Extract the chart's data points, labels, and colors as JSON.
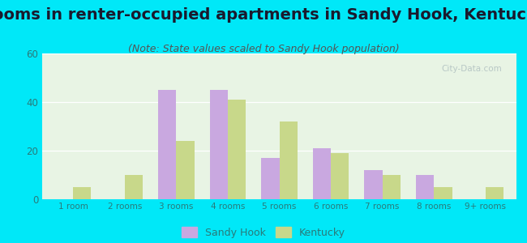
{
  "title": "Rooms in renter-occupied apartments in Sandy Hook, Kentucky",
  "subtitle": "(Note: State values scaled to Sandy Hook population)",
  "categories": [
    "1 room",
    "2 rooms",
    "3 rooms",
    "4 rooms",
    "5 rooms",
    "6 rooms",
    "7 rooms",
    "8 rooms",
    "9+ rooms"
  ],
  "sandy_hook": [
    0,
    0,
    45,
    45,
    17,
    21,
    12,
    10,
    0
  ],
  "kentucky": [
    5,
    10,
    24,
    41,
    32,
    19,
    10,
    5,
    5
  ],
  "sandy_hook_color": "#c9a8e0",
  "kentucky_color": "#c8d88a",
  "background_outer": "#00e8f8",
  "background_inner": "#e8f4e4",
  "ylim": [
    0,
    60
  ],
  "yticks": [
    0,
    20,
    40,
    60
  ],
  "title_fontsize": 14,
  "subtitle_fontsize": 9,
  "bar_width": 0.35,
  "watermark": "City-Data.com",
  "tick_color": "#2a7a7a",
  "title_color": "#1a1a2e"
}
